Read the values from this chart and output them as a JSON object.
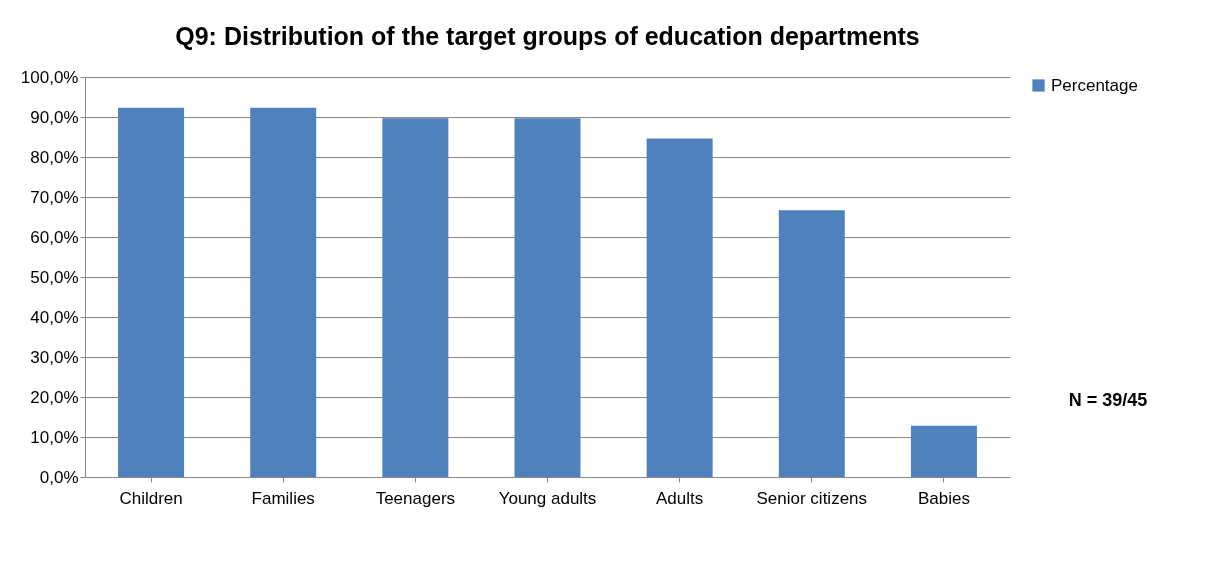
{
  "chart_data": {
    "type": "bar",
    "title": "Q9: Distribution of the target groups of education departments",
    "categories": [
      "Children",
      "Families",
      "Teenagers",
      "Young adults",
      "Adults",
      "Senior citizens",
      "Babies"
    ],
    "series": [
      {
        "name": "Percentage",
        "color": "#4f81bd",
        "values": [
          92.3,
          92.3,
          89.7,
          89.7,
          84.6,
          66.7,
          12.8
        ]
      }
    ],
    "ylim": [
      0,
      100
    ],
    "yticks": [
      {
        "value": 0,
        "label": "0,0%"
      },
      {
        "value": 10,
        "label": "10,0%"
      },
      {
        "value": 20,
        "label": "20,0%"
      },
      {
        "value": 30,
        "label": "30,0%"
      },
      {
        "value": 40,
        "label": "40,0%"
      },
      {
        "value": 50,
        "label": "50,0%"
      },
      {
        "value": 60,
        "label": "60,0%"
      },
      {
        "value": 70,
        "label": "70,0%"
      },
      {
        "value": 80,
        "label": "80,0%"
      },
      {
        "value": 90,
        "label": "90,0%"
      },
      {
        "value": 100,
        "label": "100,0%"
      }
    ],
    "grid": "y",
    "legend": "right",
    "annotations": [
      "N = 39/45"
    ]
  }
}
